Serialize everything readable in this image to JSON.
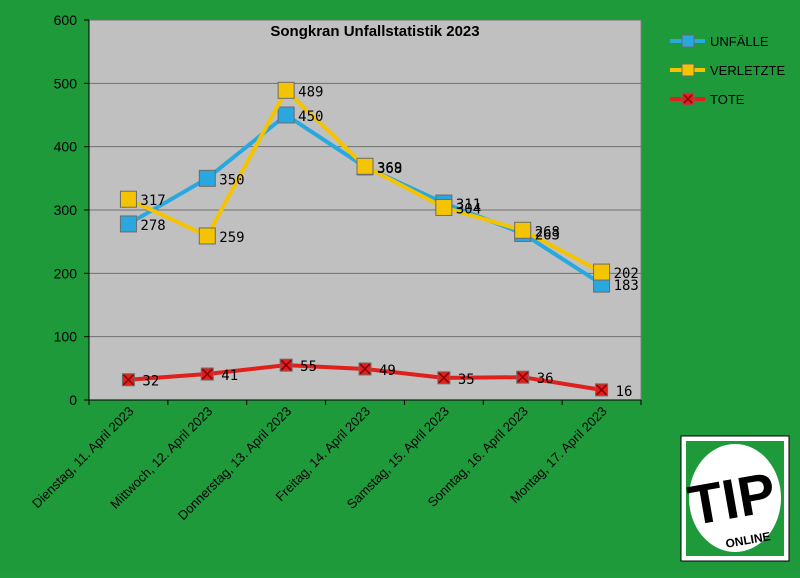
{
  "chart_data": {
    "type": "line",
    "title": "Songkran Unfallstatistik 2023",
    "categories": [
      "Dienstag, 11. April 2023",
      "Mittwoch, 12. April 2023",
      "Donnerstag, 13. April 2023",
      "Freitag, 14. April 2023",
      "Samstag, 15. April 2023",
      "Sonntag, 16. April 2023",
      "Montag, 17. April 2023"
    ],
    "ylim": [
      0,
      600
    ],
    "yticks": [
      "0",
      "100",
      "200",
      "300",
      "400",
      "500",
      "600"
    ],
    "grid": true,
    "legend_position": "right",
    "series": [
      {
        "name": "UNFÄLLE",
        "values": [
          278,
          350,
          450,
          368,
          311,
          263,
          183
        ],
        "labels": [
          "278",
          "350",
          "450",
          "368",
          "311",
          "263",
          "183"
        ],
        "color": "#29a8e0",
        "marker": "square",
        "marker_color": "#29a8e0"
      },
      {
        "name": "VERLETZTE",
        "values": [
          317,
          259,
          489,
          369,
          304,
          268,
          202
        ],
        "labels": [
          "317",
          "259",
          "489",
          "369",
          "304",
          "268",
          "202"
        ],
        "color": "#f5c400",
        "marker": "square",
        "marker_color": "#f5c400"
      },
      {
        "name": "TOTE",
        "values": [
          32,
          41,
          55,
          49,
          35,
          36,
          16
        ],
        "labels": [
          "32",
          "41",
          "55",
          "49",
          "35",
          "36",
          "16"
        ],
        "color": "#e0201c",
        "marker": "x-square",
        "marker_color": "#e0201c"
      }
    ]
  },
  "logo": {
    "text_main": "TIP",
    "text_sub": "ONLINE"
  },
  "colors": {
    "background": "#1e9a3b",
    "plot_area": "#c0c0c0"
  }
}
